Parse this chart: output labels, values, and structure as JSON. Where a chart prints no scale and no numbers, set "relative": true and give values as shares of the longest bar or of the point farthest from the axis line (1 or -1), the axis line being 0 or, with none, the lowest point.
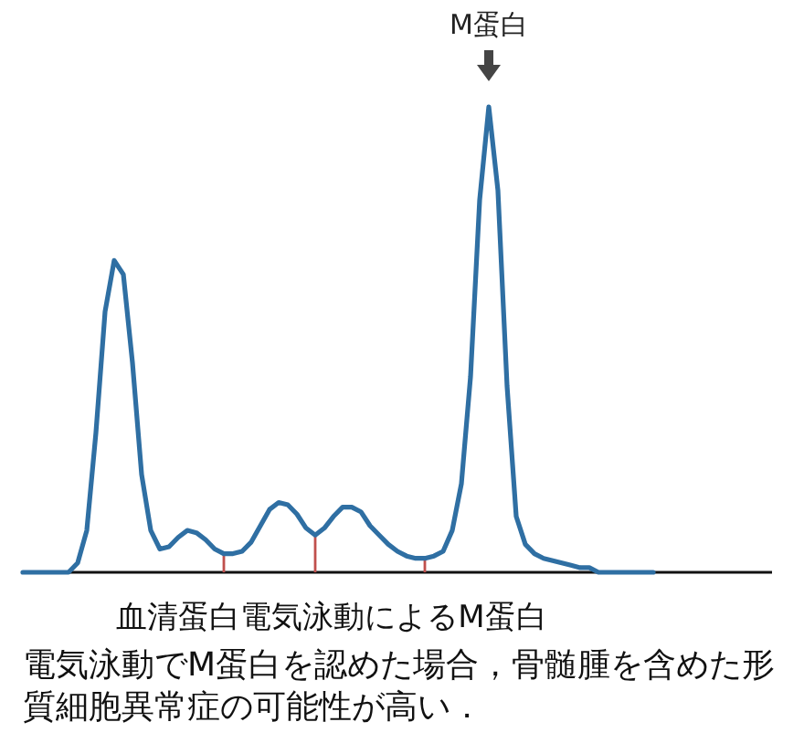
{
  "chart_data": {
    "type": "line",
    "relative": true,
    "title": "血清蛋白電気泳動によるM蛋白",
    "categories": [
      null,
      null,
      null,
      null,
      null,
      null,
      null,
      null,
      null,
      null,
      null,
      null,
      null,
      null,
      null,
      null,
      null,
      null,
      null,
      null,
      null,
      null,
      null,
      null,
      null,
      null,
      null,
      null,
      null,
      null,
      null,
      null,
      null,
      null,
      null,
      null,
      null,
      null,
      null,
      null,
      null,
      null,
      null,
      null,
      null,
      null,
      null,
      null,
      null,
      null,
      null,
      null,
      null,
      null,
      null,
      null,
      null,
      null,
      null,
      null,
      null,
      null,
      null,
      null,
      null,
      null,
      null,
      null,
      null,
      null,
      null,
      null,
      null,
      null,
      null,
      null,
      null,
      null,
      null,
      null,
      null,
      null,
      null
    ],
    "series": [
      {
        "color": "#2f6fa3",
        "values": [
          0,
          0,
          0,
          0,
          0,
          0,
          0.02,
          0.09,
          0.3,
          0.56,
          0.67,
          0.64,
          0.45,
          0.21,
          0.09,
          0.05,
          0.055,
          0.075,
          0.09,
          0.085,
          0.07,
          0.05,
          0.04,
          0.04,
          0.045,
          0.065,
          0.1,
          0.135,
          0.15,
          0.145,
          0.125,
          0.095,
          0.08,
          0.095,
          0.12,
          0.14,
          0.14,
          0.13,
          0.1,
          0.08,
          0.06,
          0.045,
          0.035,
          0.03,
          0.03,
          0.035,
          0.045,
          0.09,
          0.19,
          0.42,
          0.8,
          1,
          0.82,
          0.4,
          0.12,
          0.06,
          0.04,
          0.03,
          0.025,
          0.02,
          0.015,
          0.01,
          0.01,
          0,
          0,
          0,
          0,
          0,
          0,
          0,
          null,
          null,
          null,
          null,
          null,
          null,
          null,
          null,
          null,
          null,
          null,
          null,
          null
        ]
      }
    ],
    "line_style": "solid",
    "annotations": [
      {
        "text": "M蛋白",
        "y": 1
      },
      "電気泳動でM蛋白を認めた場合，骨髄腫を含めた形質細胞異常症の可能性が高い．"
    ]
  }
}
